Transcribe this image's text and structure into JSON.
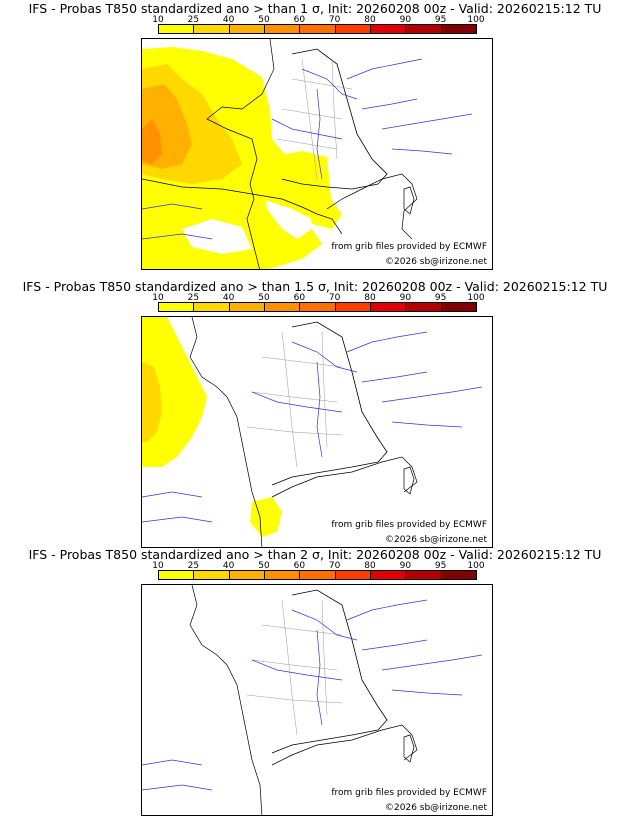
{
  "legend": {
    "ticks": [
      "10",
      "25",
      "40",
      "50",
      "60",
      "70",
      "80",
      "90",
      "95",
      "100"
    ],
    "colors": [
      "#ffff00",
      "#ffd800",
      "#ffb000",
      "#ff9000",
      "#ff7000",
      "#ff3c00",
      "#e00000",
      "#b00000",
      "#800000"
    ]
  },
  "panels": [
    {
      "title": "IFS - Probas T850  standardized ano > than 1 σ, Init: 20260208 00z - Valid: 20260215:12 TU",
      "credit_source": "from grib files provided by ECMWF",
      "credit_copyright": "©2026 sb@irizone.net"
    },
    {
      "title": "IFS - Probas T850  standardized ano > than 1.5 σ, Init: 20260208 00z - Valid: 20260215:12 TU",
      "credit_source": "from grib files provided by ECMWF",
      "credit_copyright": "©2026 sb@irizone.net"
    },
    {
      "title": "IFS - Probas T850  standardized ano > than 2 σ, Init: 20260208 00z - Valid: 20260215:12 TU",
      "credit_source": "from grib files provided by ECMWF",
      "credit_copyright": "©2026 sb@irizone.net"
    }
  ]
}
